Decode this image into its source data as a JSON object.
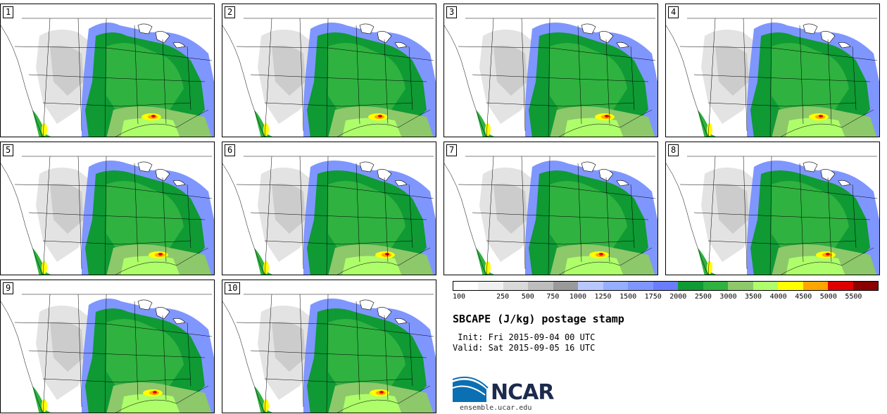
{
  "panels": [
    {
      "label": "1"
    },
    {
      "label": "2"
    },
    {
      "label": "3"
    },
    {
      "label": "4"
    },
    {
      "label": "5"
    },
    {
      "label": "6"
    },
    {
      "label": "7"
    },
    {
      "label": "8"
    },
    {
      "label": "9"
    },
    {
      "label": "10"
    }
  ],
  "legend": {
    "colors": [
      "#ffffff",
      "#f0f0f0",
      "#d9d9d9",
      "#bdbdbd",
      "#9a9a9a",
      "#b8c8ff",
      "#96aeff",
      "#7f96ff",
      "#6a7dff",
      "#0f9a34",
      "#2fb23f",
      "#8dc86a",
      "#aefd6a",
      "#ffff00",
      "#ffa500",
      "#e00000",
      "#8b0000"
    ],
    "ticks": [
      "100",
      "250",
      "500",
      "750",
      "1000",
      "1250",
      "1500",
      "1750",
      "2000",
      "2500",
      "3000",
      "3500",
      "4000",
      "4500",
      "5000",
      "5500"
    ]
  },
  "title": "SBCAPE (J/kg) postage stamp",
  "init": " Init: Fri 2015-09-04 00 UTC",
  "valid": "Valid: Sat 2015-09-05 16 UTC",
  "logo_text": "NCAR",
  "site": "ensemble.ucar.edu"
}
